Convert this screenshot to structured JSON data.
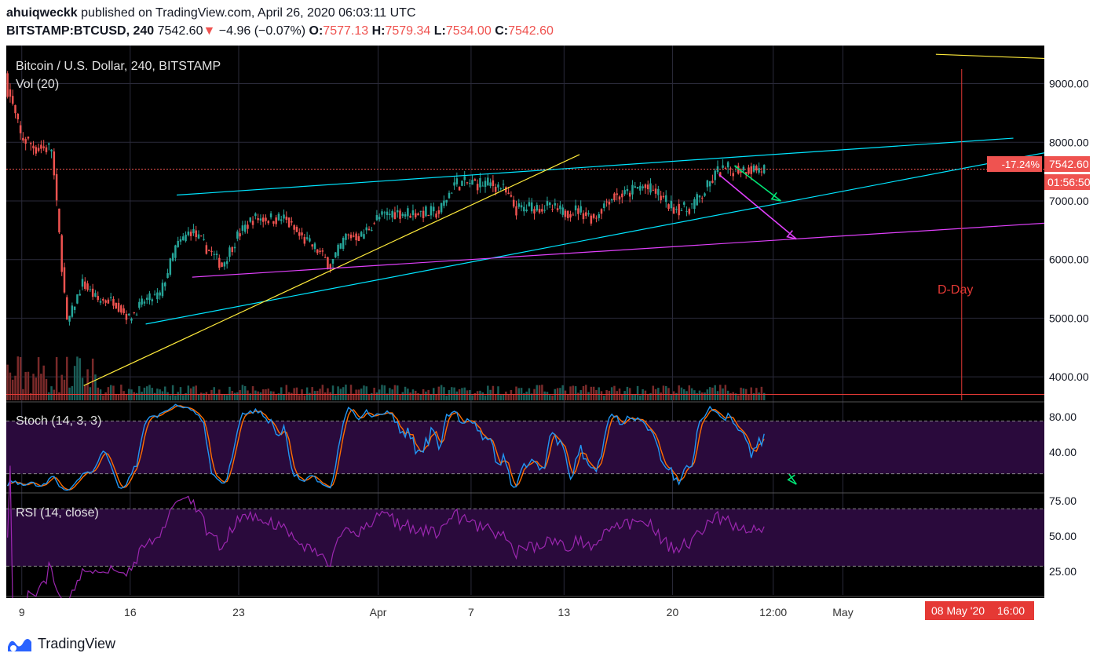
{
  "header": {
    "author": "ahuiqweckk",
    "published_text": "published on TradingView.com, April 26, 2020 06:03:11 UTC",
    "symbol": "BITSTAMP:BTCUSD, 240",
    "last": "7542.60",
    "down_arrow": "▼",
    "change": "−4.96 (−0.07%)",
    "o_label": "O:",
    "o_value": "7577.13",
    "h_label": "H:",
    "h_value": "7579.34",
    "l_label": "L:",
    "l_value": "7534.00",
    "c_label": "C:",
    "c_value": "7542.60"
  },
  "footer": {
    "brand": "TradingView",
    "logo_icon": "tradingview-logo-icon"
  },
  "colors": {
    "background": "#000000",
    "grid": "#2a2a3a",
    "up": "#26a69a",
    "down": "#ef5350",
    "trend_cyan": "#00e5ff",
    "trend_yellow": "#ffeb3b",
    "trend_magenta": "#e040fb",
    "arrow_green": "#00e676",
    "dday_red": "#e53935",
    "stoch_k": "#2196f3",
    "stoch_d": "#ff6d00",
    "rsi": "#9c27b0",
    "osc_band": "#2a0a3c"
  },
  "chart_data": {
    "type": "candlestick",
    "title": "Bitcoin / U.S. Dollar, 240, BITSTAMP",
    "volume_label": "Vol (20)",
    "price_axis_ticks": [
      "9000.00",
      "8000.00",
      "7000.00",
      "6000.00",
      "5000.00",
      "4000.00"
    ],
    "ylim": [
      3600,
      9650
    ],
    "x_ticks": [
      "9",
      "16",
      "23",
      "Apr",
      "7",
      "13",
      "20",
      "12:00",
      "May"
    ],
    "price_path": [
      [
        "2020-03-08",
        9100
      ],
      [
        "2020-03-09",
        8100
      ],
      [
        "2020-03-10",
        7900
      ],
      [
        "2020-03-11",
        7900
      ],
      [
        "2020-03-12",
        4900
      ],
      [
        "2020-03-13",
        5600
      ],
      [
        "2020-03-14",
        5300
      ],
      [
        "2020-03-15",
        5300
      ],
      [
        "2020-03-16",
        5000
      ],
      [
        "2020-03-17",
        5300
      ],
      [
        "2020-03-18",
        5400
      ],
      [
        "2020-03-19",
        6200
      ],
      [
        "2020-03-20",
        6500
      ],
      [
        "2020-03-21",
        6200
      ],
      [
        "2020-03-22",
        5900
      ],
      [
        "2020-03-23",
        6400
      ],
      [
        "2020-03-24",
        6700
      ],
      [
        "2020-03-25",
        6700
      ],
      [
        "2020-03-26",
        6700
      ],
      [
        "2020-03-27",
        6400
      ],
      [
        "2020-03-28",
        6200
      ],
      [
        "2020-03-29",
        5900
      ],
      [
        "2020-03-30",
        6400
      ],
      [
        "2020-03-31",
        6400
      ],
      [
        "2020-04-01",
        6700
      ],
      [
        "2020-04-02",
        6800
      ],
      [
        "2020-04-03",
        6800
      ],
      [
        "2020-04-04",
        6800
      ],
      [
        "2020-04-05",
        6800
      ],
      [
        "2020-04-06",
        7300
      ],
      [
        "2020-04-07",
        7300
      ],
      [
        "2020-04-08",
        7300
      ],
      [
        "2020-04-09",
        7250
      ],
      [
        "2020-04-10",
        6850
      ],
      [
        "2020-04-11",
        6900
      ],
      [
        "2020-04-12",
        6900
      ],
      [
        "2020-04-13",
        6800
      ],
      [
        "2020-04-14",
        6850
      ],
      [
        "2020-04-15",
        6700
      ],
      [
        "2020-04-16",
        7050
      ],
      [
        "2020-04-17",
        7100
      ],
      [
        "2020-04-18",
        7250
      ],
      [
        "2020-04-19",
        7150
      ],
      [
        "2020-04-20",
        6900
      ],
      [
        "2020-04-21",
        6850
      ],
      [
        "2020-04-22",
        7100
      ],
      [
        "2020-04-23",
        7500
      ],
      [
        "2020-04-24",
        7550
      ],
      [
        "2020-04-25",
        7550
      ],
      [
        "2020-04-26",
        7542.6
      ]
    ],
    "last_price": "7542.60",
    "last_price_change_label": "-17.24%",
    "countdown": "01:56:50",
    "annotation_text": "D-Day",
    "crosshair_date_label": "08 May '20",
    "crosshair_time_label": "16:00",
    "stoch": {
      "label": "Stoch (14, 3, 3)",
      "ticks": [
        "80.00",
        "40.00"
      ],
      "bands": [
        80,
        20
      ]
    },
    "rsi": {
      "label": "RSI (14, close)",
      "ticks": [
        "75.00",
        "50.00",
        "25.00"
      ],
      "bands": [
        70,
        30
      ]
    }
  }
}
